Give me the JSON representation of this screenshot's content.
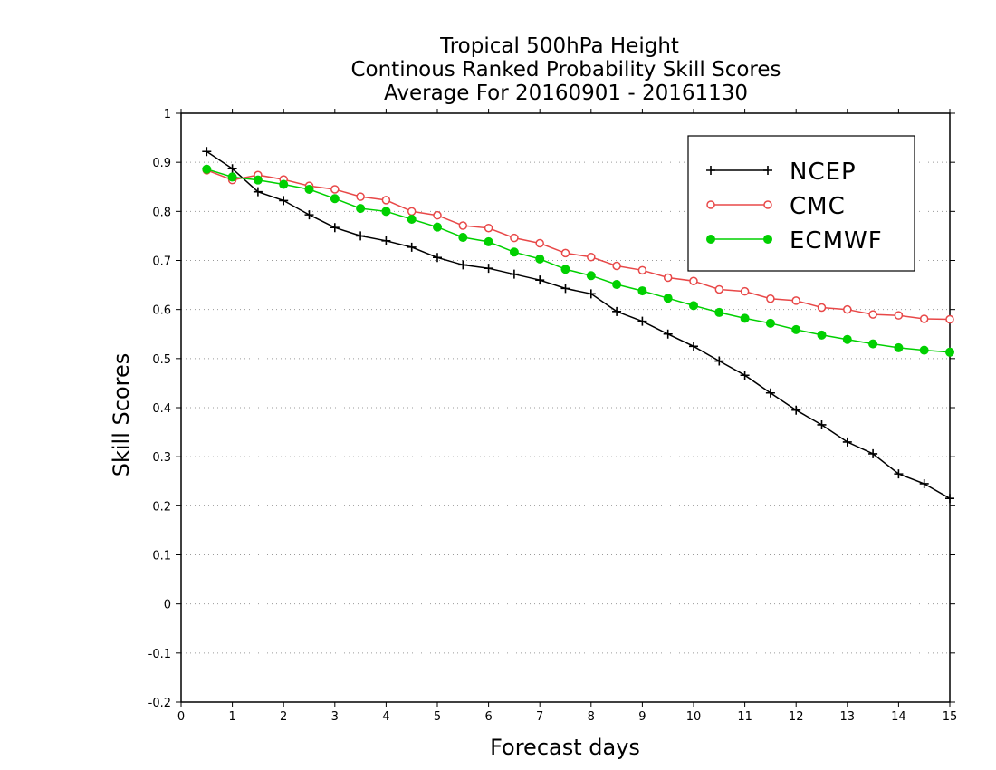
{
  "chart_data": {
    "type": "line",
    "title_lines": [
      "Tropical 500hPa Height",
      "Continous Ranked Probability Skill Scores",
      "Average For 20160901 - 20161130"
    ],
    "xlabel": "Forecast days",
    "ylabel": "Skill Scores",
    "xlim": [
      0,
      15
    ],
    "ylim": [
      -0.2,
      1
    ],
    "x_ticks": [
      "0",
      "1",
      "2",
      "3",
      "4",
      "5",
      "6",
      "7",
      "8",
      "9",
      "10",
      "11",
      "12",
      "13",
      "14",
      "15"
    ],
    "y_ticks": [
      "-0.2",
      "-0.1",
      "0",
      "0.1",
      "0.2",
      "0.3",
      "0.4",
      "0.5",
      "0.6",
      "0.7",
      "0.8",
      "0.9",
      "1"
    ],
    "grid": "horizontal dotted",
    "legend_position": "top-right",
    "x": [
      0.5,
      1,
      1.5,
      2,
      2.5,
      3,
      3.5,
      4,
      4.5,
      5,
      5.5,
      6,
      6.5,
      7,
      7.5,
      8,
      8.5,
      9,
      9.5,
      10,
      10.5,
      11,
      11.5,
      12,
      12.5,
      13,
      13.5,
      14,
      14.5,
      15
    ],
    "series": [
      {
        "name": "NCEP",
        "color": "#000000",
        "marker": "plus",
        "values": [
          0.922,
          0.887,
          0.84,
          0.822,
          0.793,
          0.767,
          0.75,
          0.74,
          0.727,
          0.706,
          0.691,
          0.684,
          0.672,
          0.66,
          0.643,
          0.632,
          0.596,
          0.576,
          0.55,
          0.525,
          0.495,
          0.466,
          0.43,
          0.395,
          0.365,
          0.33,
          0.306,
          0.265,
          0.245,
          0.215
        ]
      },
      {
        "name": "CMC",
        "color": "#e84848",
        "marker": "open-circle",
        "values": [
          0.884,
          0.864,
          0.874,
          0.865,
          0.852,
          0.845,
          0.83,
          0.823,
          0.8,
          0.792,
          0.771,
          0.766,
          0.746,
          0.735,
          0.715,
          0.707,
          0.689,
          0.68,
          0.665,
          0.658,
          0.641,
          0.637,
          0.622,
          0.618,
          0.604,
          0.6,
          0.59,
          0.588,
          0.581,
          0.58
        ]
      },
      {
        "name": "ECMWF",
        "color": "#00d000",
        "marker": "filled-circle",
        "values": [
          0.886,
          0.87,
          0.864,
          0.855,
          0.845,
          0.826,
          0.806,
          0.8,
          0.784,
          0.768,
          0.747,
          0.738,
          0.717,
          0.703,
          0.682,
          0.669,
          0.651,
          0.638,
          0.623,
          0.608,
          0.594,
          0.582,
          0.572,
          0.559,
          0.548,
          0.539,
          0.53,
          0.522,
          0.517,
          0.513
        ]
      }
    ]
  }
}
